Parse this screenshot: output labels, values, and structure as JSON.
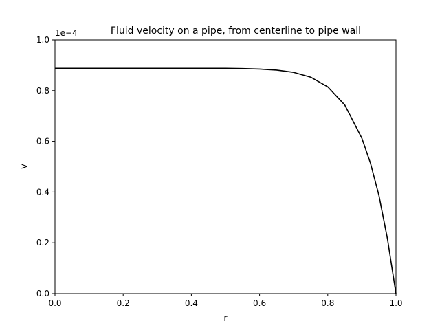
{
  "chart_data": {
    "type": "line",
    "title": "Fluid velocity on a pipe, from centerline to pipe wall",
    "xlabel": "r",
    "ylabel": "v",
    "y_scale_label": "1e−4",
    "xlim": [
      0.0,
      1.0
    ],
    "ylim": [
      0.0,
      1.0
    ],
    "xticks": [
      "0.0",
      "0.2",
      "0.4",
      "0.6",
      "0.8",
      "1.0"
    ],
    "yticks": [
      "0.0",
      "0.2",
      "0.4",
      "0.6",
      "0.8",
      "1.0"
    ],
    "grid": false,
    "series": [
      {
        "color": "#000000",
        "x": [
          0.0,
          0.1,
          0.2,
          0.3,
          0.4,
          0.5,
          0.55,
          0.6,
          0.65,
          0.7,
          0.75,
          0.8,
          0.85,
          0.9,
          0.925,
          0.95,
          0.975,
          1.0
        ],
        "y": [
          0.888,
          0.888,
          0.888,
          0.888,
          0.888,
          0.888,
          0.887,
          0.885,
          0.881,
          0.872,
          0.853,
          0.815,
          0.743,
          0.612,
          0.515,
          0.387,
          0.216,
          0.0
        ]
      }
    ]
  }
}
